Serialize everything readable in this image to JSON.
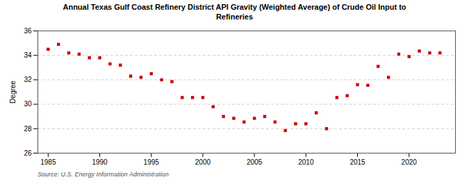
{
  "chart_data": {
    "type": "scatter",
    "title": "Annual Texas Gulf Coast Refinery District API Gravity (Weighted Average) of Crude Oil Input to\nRefineries",
    "ylabel": "Degree",
    "source": "Source: U.S. Energy Information Administration",
    "x": [
      1985,
      1986,
      1987,
      1988,
      1989,
      1990,
      1991,
      1992,
      1993,
      1994,
      1995,
      1996,
      1997,
      1998,
      1999,
      2000,
      2001,
      2002,
      2003,
      2004,
      2005,
      2006,
      2007,
      2008,
      2009,
      2010,
      2011,
      2012,
      2013,
      2014,
      2015,
      2016,
      2017,
      2018,
      2019,
      2020,
      2021,
      2022,
      2023
    ],
    "values": [
      34.5,
      34.9,
      34.2,
      34.1,
      33.8,
      33.8,
      33.3,
      33.2,
      32.3,
      32.2,
      32.5,
      32.0,
      31.85,
      30.55,
      30.55,
      30.55,
      29.8,
      29.0,
      28.85,
      28.55,
      28.85,
      29.0,
      28.55,
      27.85,
      28.4,
      28.4,
      29.3,
      28.0,
      30.55,
      30.7,
      31.6,
      31.55,
      33.1,
      32.2,
      34.1,
      33.9,
      34.35,
      34.2,
      34.2
    ],
    "color": "#cc0000",
    "marker": "square",
    "xlim": [
      1984,
      2024.5
    ],
    "xticks": [
      1985,
      1990,
      1995,
      2000,
      2005,
      2010,
      2015,
      2020
    ],
    "ylim": [
      26,
      36
    ],
    "yticks": [
      26,
      28,
      30,
      32,
      34,
      36
    ],
    "grid": true
  }
}
